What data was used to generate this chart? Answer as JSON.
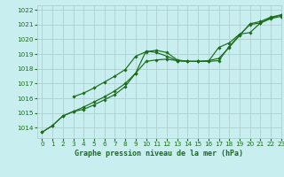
{
  "title": "Graphe pression niveau de la mer (hPa)",
  "bg_color": "#c8eef0",
  "grid_color": "#b0d0d0",
  "line_color": "#1a6e1a",
  "xlim": [
    -0.5,
    23
  ],
  "ylim": [
    1013.3,
    1022.3
  ],
  "yticks": [
    1014,
    1015,
    1016,
    1017,
    1018,
    1019,
    1020,
    1021,
    1022
  ],
  "xticks": [
    0,
    1,
    2,
    3,
    4,
    5,
    6,
    7,
    8,
    9,
    10,
    11,
    12,
    13,
    14,
    15,
    16,
    17,
    18,
    19,
    20,
    21,
    22,
    23
  ],
  "series1_x": [
    0,
    1,
    2,
    3,
    4,
    5,
    6,
    7,
    8,
    9,
    10,
    11,
    12,
    13,
    14,
    15,
    16,
    17,
    18,
    19,
    20,
    21,
    22,
    23
  ],
  "series1_y": [
    1013.7,
    1014.15,
    1014.8,
    1015.1,
    1015.25,
    1015.55,
    1015.9,
    1016.25,
    1016.8,
    1017.7,
    1019.2,
    1019.1,
    1018.85,
    1018.55,
    1018.5,
    1018.5,
    1018.5,
    1018.55,
    1019.5,
    1020.3,
    1021.0,
    1021.1,
    1021.4,
    1021.55
  ],
  "series2_x": [
    0,
    1,
    2,
    3,
    4,
    5,
    6,
    7,
    8,
    9,
    10,
    11,
    12,
    13,
    14,
    15,
    16,
    17,
    18,
    19,
    20,
    21,
    22,
    23
  ],
  "series2_y": [
    1013.7,
    1014.15,
    1014.8,
    1015.1,
    1015.4,
    1015.75,
    1016.1,
    1016.5,
    1017.0,
    1017.7,
    1018.5,
    1018.6,
    1018.65,
    1018.55,
    1018.5,
    1018.5,
    1018.55,
    1018.7,
    1019.45,
    1020.25,
    1021.05,
    1021.2,
    1021.5,
    1021.65
  ],
  "series3_x": [
    3,
    4,
    5,
    6,
    7,
    8,
    9,
    10,
    11,
    12,
    13,
    14,
    15,
    16,
    17,
    18,
    19,
    20,
    21,
    22,
    23
  ],
  "series3_y": [
    1016.1,
    1016.35,
    1016.7,
    1017.1,
    1017.5,
    1017.95,
    1018.85,
    1019.15,
    1019.25,
    1019.1,
    1018.6,
    1018.5,
    1018.5,
    1018.5,
    1019.45,
    1019.75,
    1020.35,
    1020.45,
    1021.1,
    1021.45,
    1021.65
  ]
}
